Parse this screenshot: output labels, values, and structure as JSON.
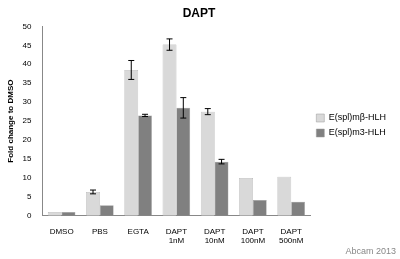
{
  "chart_data": {
    "type": "bar",
    "title": "DAPT",
    "y_label": "Fold change to DMSO",
    "categories": [
      "DMSO",
      "PBS",
      "EGTA",
      "DAPT 1nM",
      "DAPT 10nM",
      "DAPT 100nM",
      "DAPT 500nM"
    ],
    "series": [
      {
        "name": "E(spl)mβ-HLH",
        "color": "#d9d9d9",
        "values": [
          1,
          6.3,
          38.5,
          45.2,
          27.5,
          10,
          10.3
        ],
        "errors": [
          0,
          0.5,
          2.5,
          1.5,
          0.8,
          0,
          0
        ]
      },
      {
        "name": "E(spl)m3-HLH",
        "color": "#808080",
        "values": [
          1,
          2.8,
          26.5,
          28.5,
          14.3,
          4.2,
          3.7
        ],
        "errors": [
          0,
          0,
          0.3,
          2.7,
          0.6,
          0,
          0
        ]
      }
    ],
    "ylim": [
      0,
      50
    ],
    "yticks": [
      0,
      5,
      10,
      15,
      20,
      25,
      30,
      35,
      40,
      45,
      50
    ],
    "grid": false,
    "legend": "right",
    "annotation": "Abcam 2013"
  }
}
